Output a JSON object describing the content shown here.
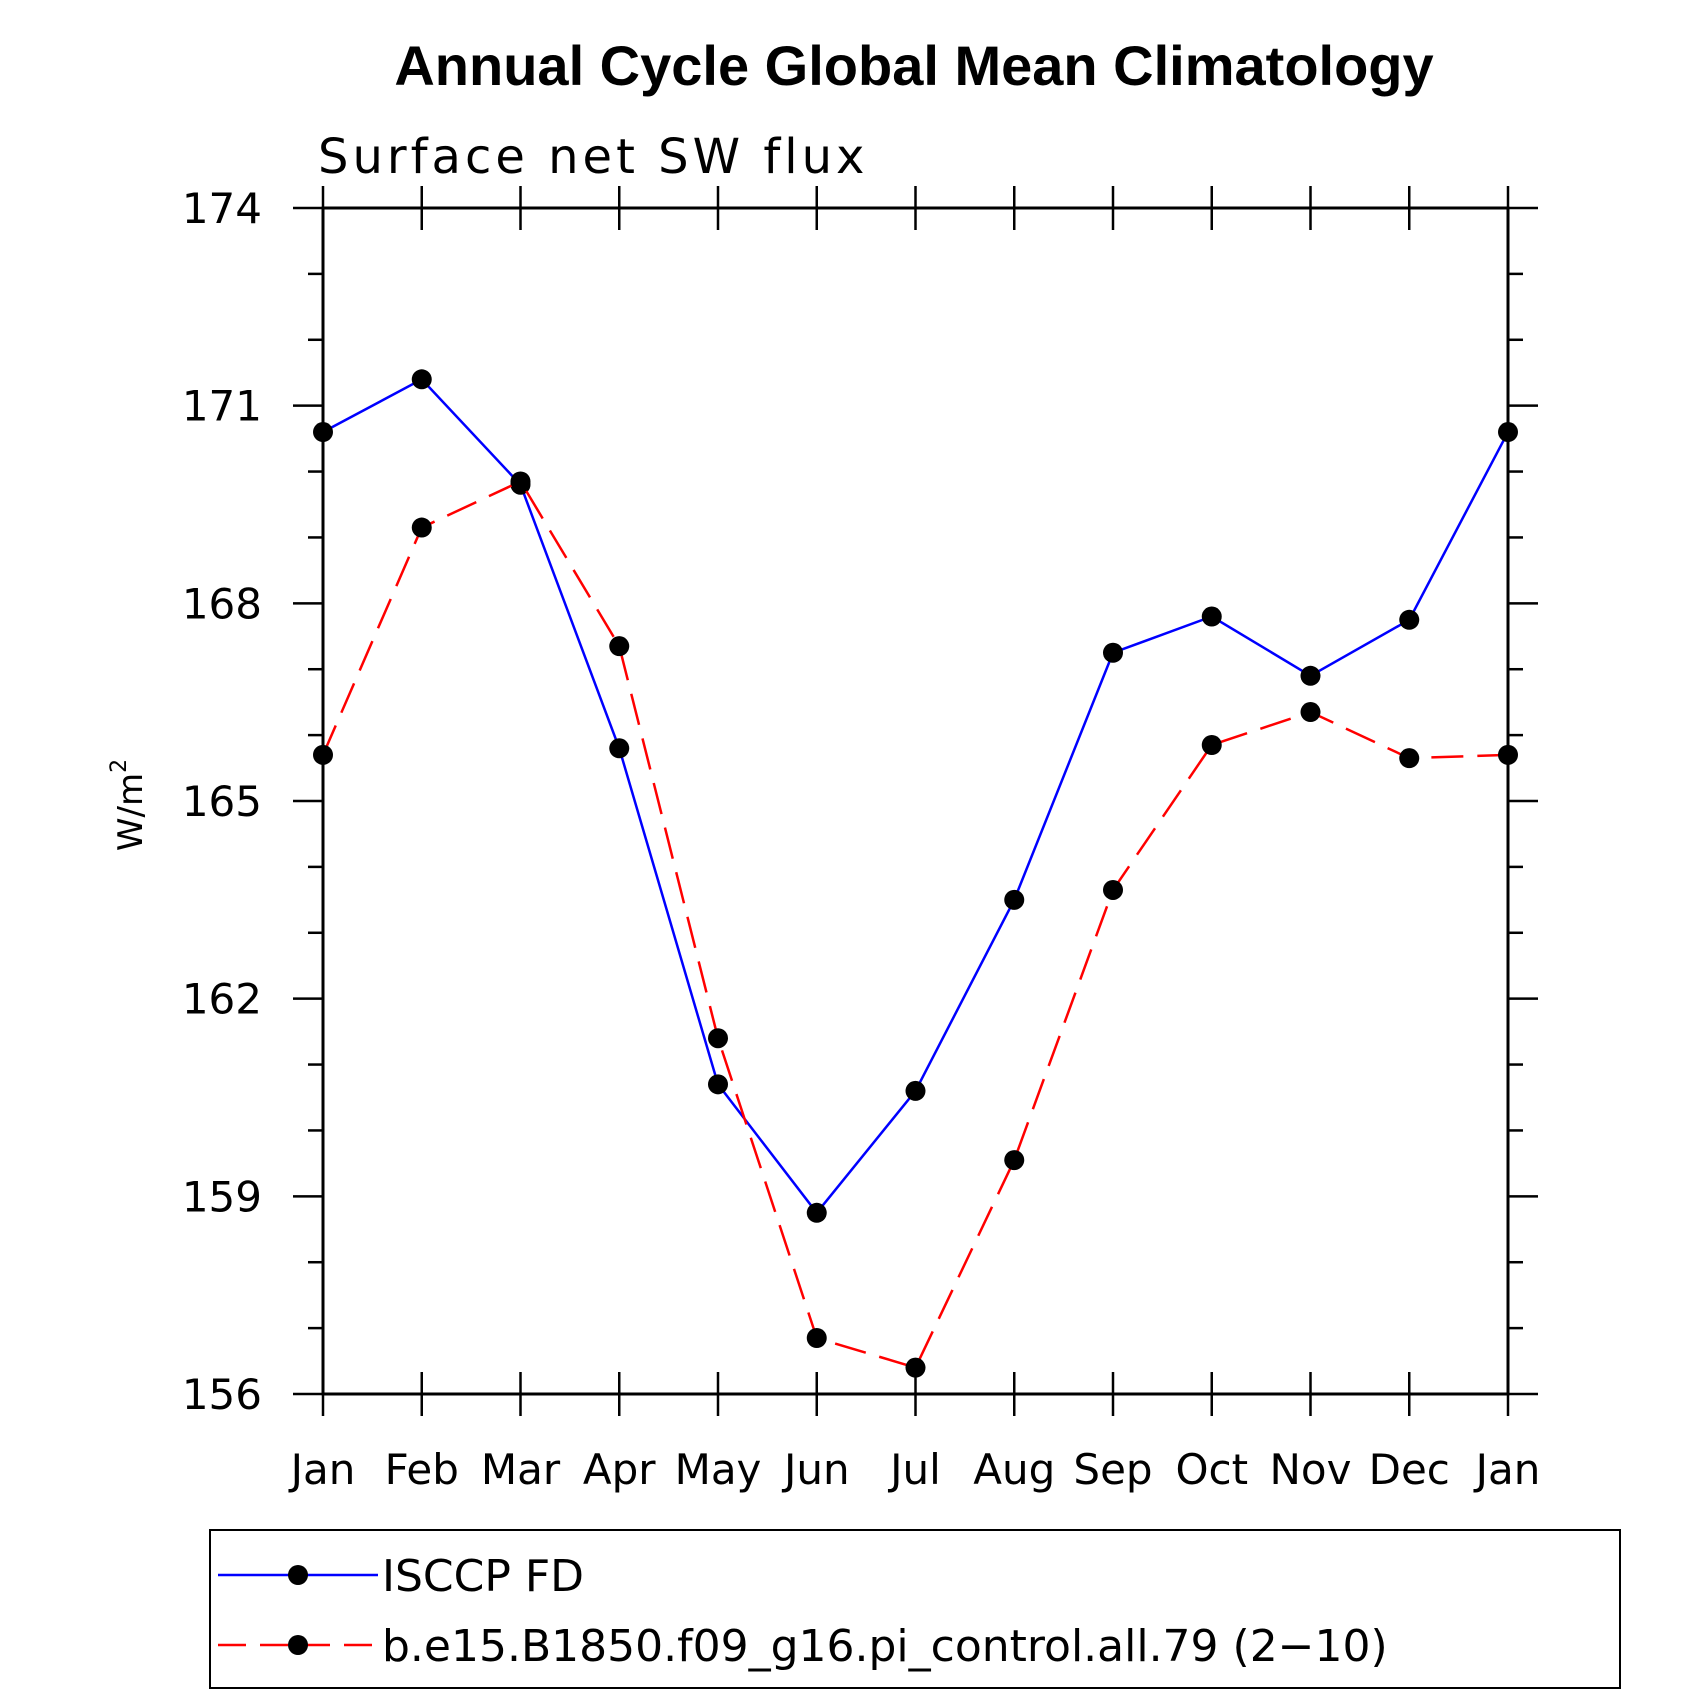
{
  "chart_data": {
    "type": "line",
    "title": "Annual Cycle Global Mean Climatology",
    "subtitle": "Surface net SW flux",
    "ylabel": "W/m",
    "ylabel_sup": "2",
    "xlabel": "",
    "categories": [
      "Jan",
      "Feb",
      "Mar",
      "Apr",
      "May",
      "Jun",
      "Jul",
      "Aug",
      "Sep",
      "Oct",
      "Nov",
      "Dec",
      "Jan"
    ],
    "ylim": [
      156,
      174
    ],
    "yticks": [
      156,
      159,
      162,
      165,
      168,
      171,
      174
    ],
    "grid": false,
    "legend_position": "bottom",
    "series": [
      {
        "name": "ISCCP FD",
        "color": "#0000ff",
        "dash": "solid",
        "values": [
          170.6,
          171.4,
          169.8,
          165.8,
          160.7,
          158.75,
          160.6,
          163.5,
          167.25,
          167.8,
          166.9,
          167.75,
          170.6
        ]
      },
      {
        "name": "b.e15.B1850.f09_g16.pi_control.all.79 (2−10)",
        "color": "#ff0000",
        "dash": "dashed",
        "values": [
          165.7,
          169.15,
          169.85,
          167.35,
          161.4,
          156.85,
          156.4,
          159.55,
          163.65,
          165.85,
          166.35,
          165.65,
          165.7
        ]
      }
    ]
  }
}
